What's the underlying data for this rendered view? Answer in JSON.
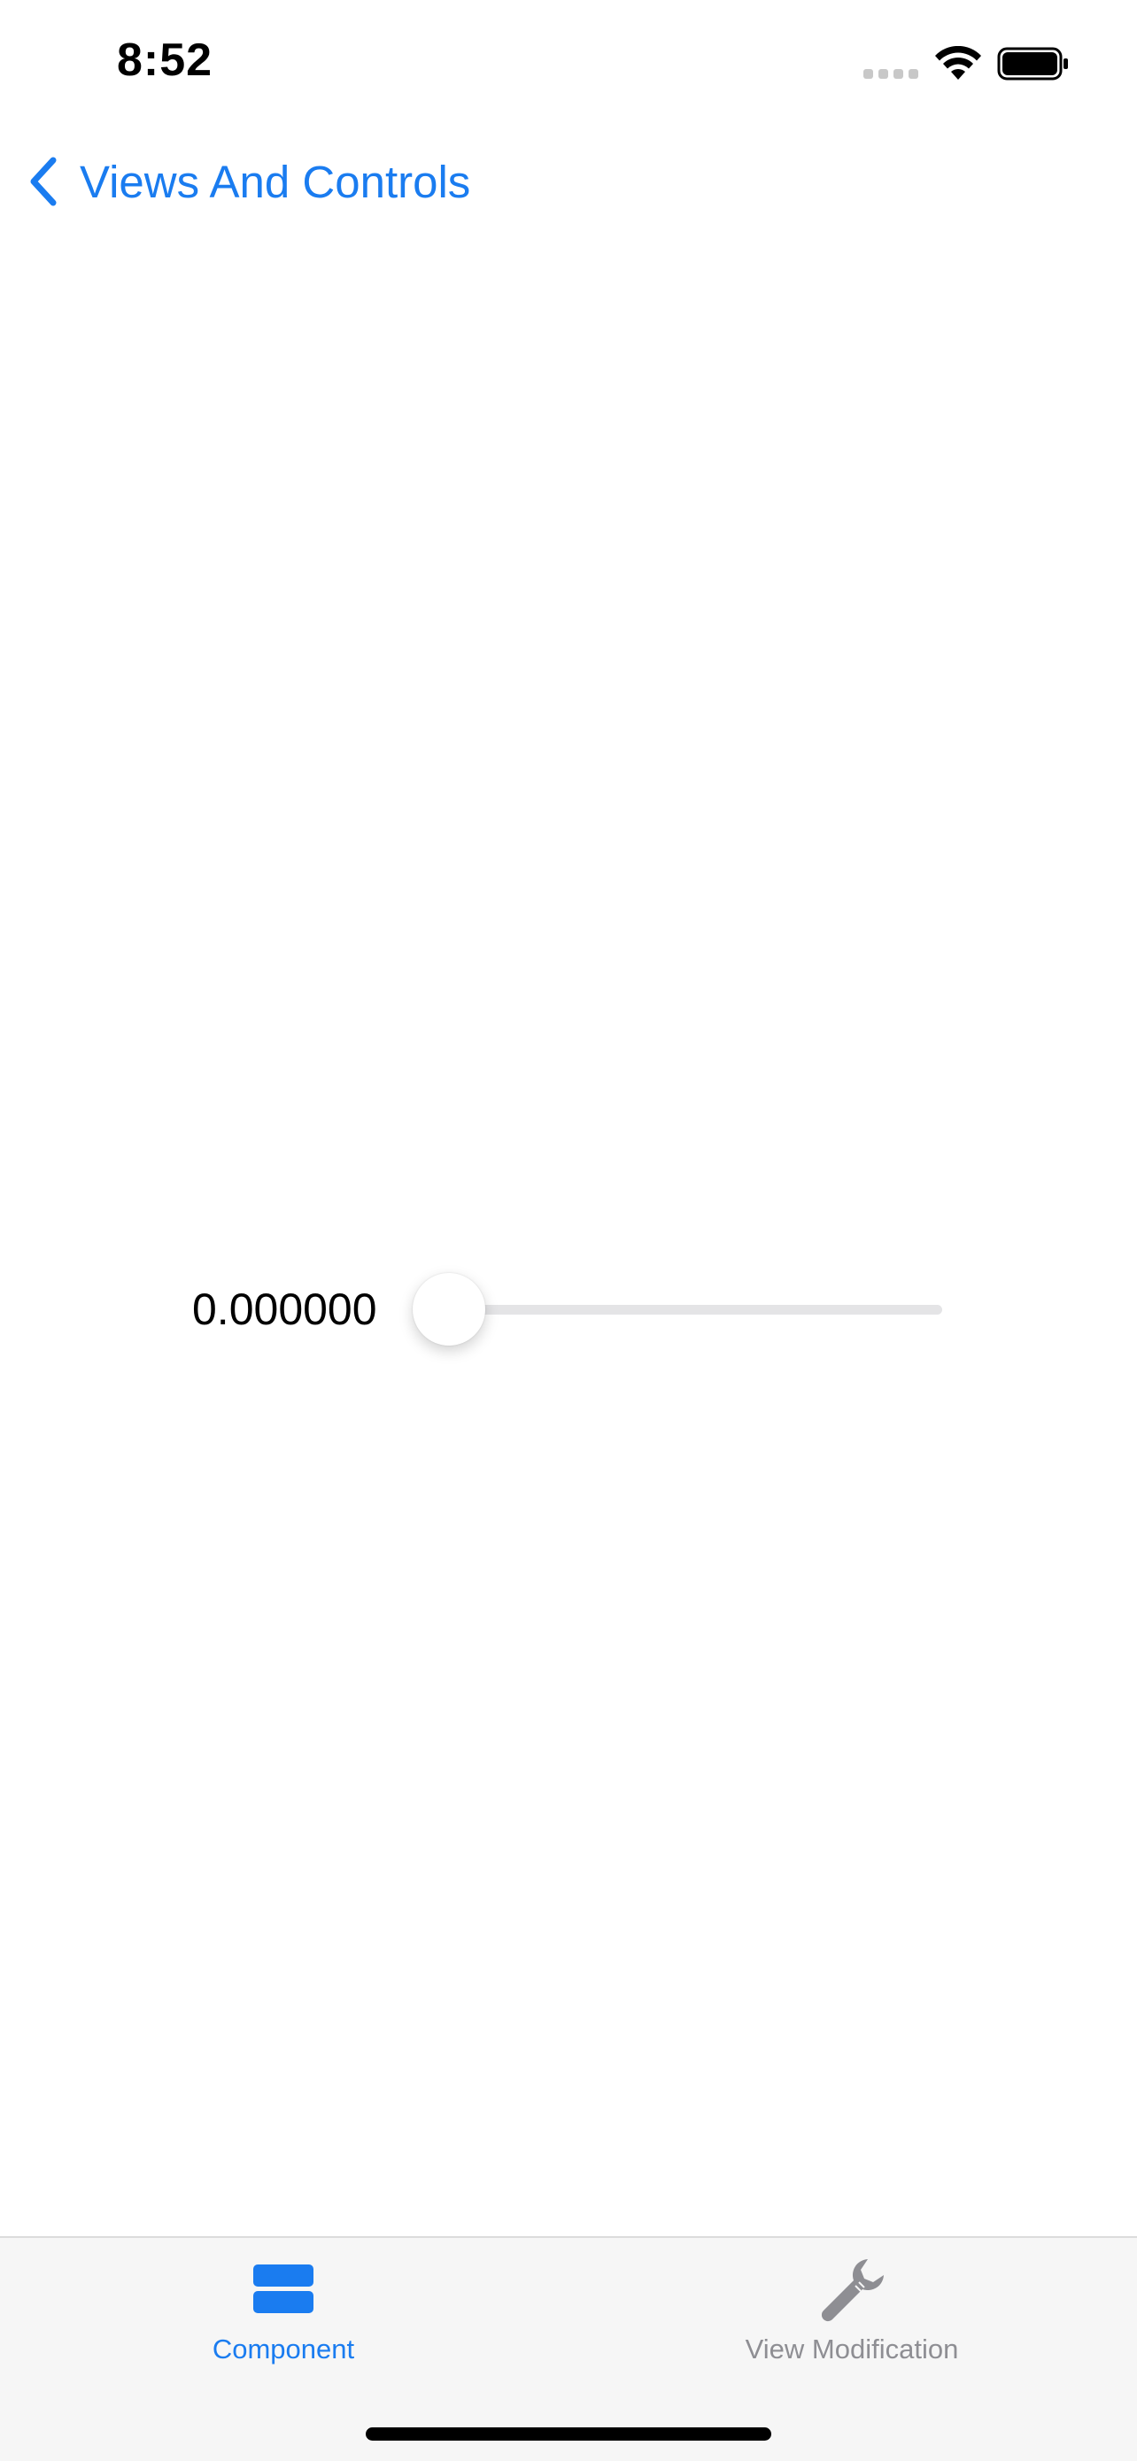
{
  "status_bar": {
    "time": "8:52",
    "signal_icon": "cellular-signal-icon",
    "wifi_icon": "wifi-icon",
    "battery_icon": "battery-full-icon"
  },
  "nav": {
    "back_label": "Views And Controls",
    "back_icon": "chevron-left-icon"
  },
  "slider": {
    "value_label": "0.000000",
    "value": 0.0,
    "min": 0.0,
    "max": 1.0
  },
  "tab_bar": {
    "tabs": [
      {
        "label": "Component",
        "icon": "component-icon",
        "selected": true
      },
      {
        "label": "View Modification",
        "icon": "wrench-icon",
        "selected": false
      }
    ]
  },
  "colors": {
    "accent": "#1a7cf0",
    "inactive": "#8e8e93",
    "track": "#e4e4e6",
    "tab_bar_bg": "#f6f6f6"
  }
}
